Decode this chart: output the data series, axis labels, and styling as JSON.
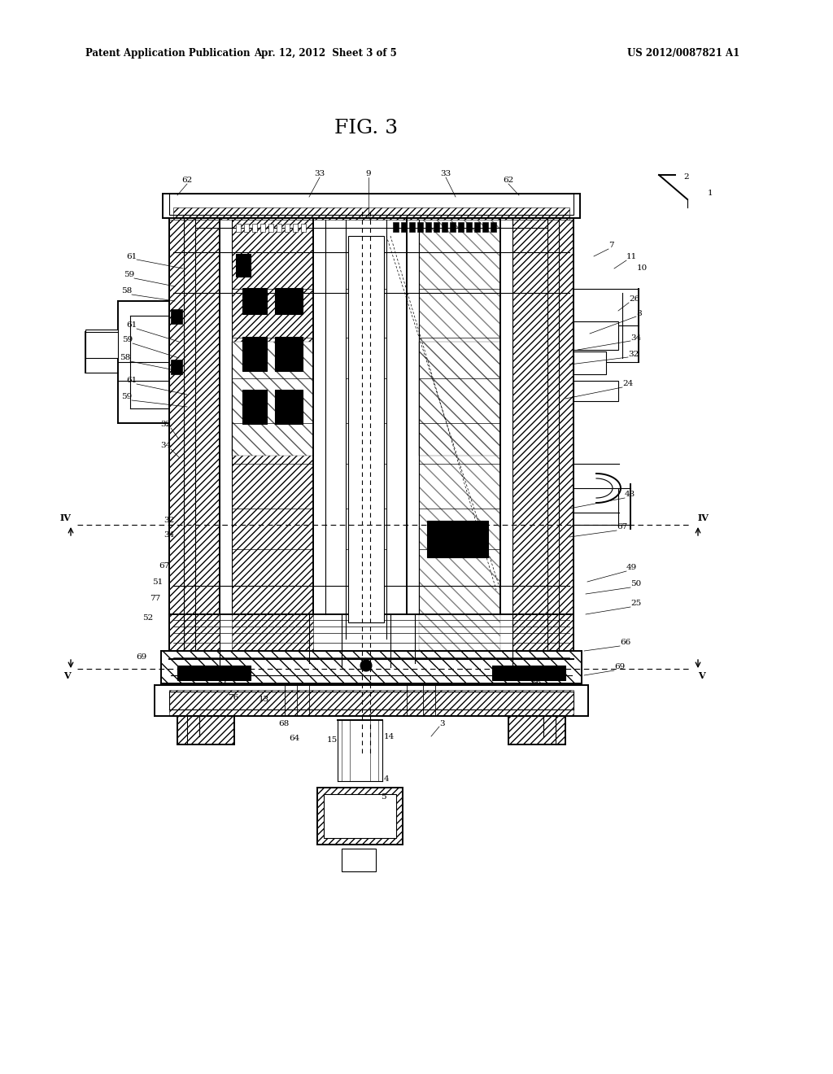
{
  "title": "FIG. 3",
  "header_left": "Patent Application Publication",
  "header_center": "Apr. 12, 2012  Sheet 3 of 5",
  "header_right": "US 2012/0087821 A1",
  "bg_color": "#ffffff",
  "line_color": "#000000",
  "fig_width": 10.24,
  "fig_height": 13.2,
  "dpi": 100
}
